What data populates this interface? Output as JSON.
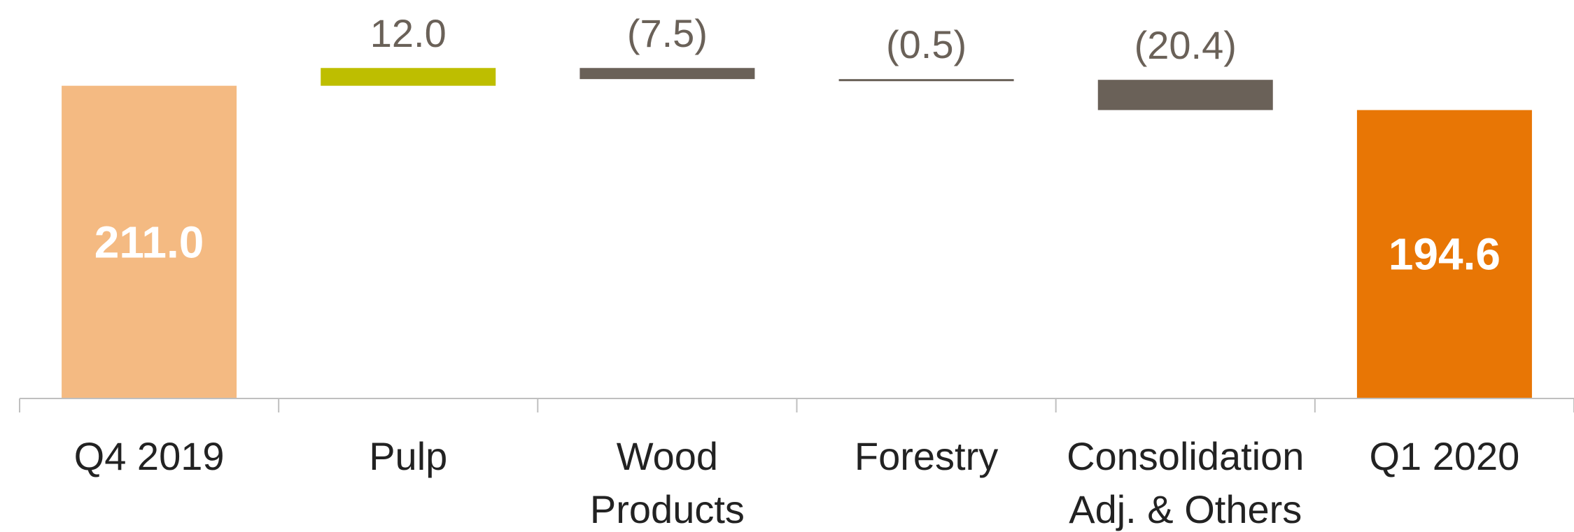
{
  "chart_data": {
    "type": "bar",
    "subtype": "waterfall",
    "title": "",
    "xlabel": "",
    "ylabel": "",
    "categories": [
      [
        "Q4 2019"
      ],
      [
        "Pulp"
      ],
      [
        "Wood",
        "Products"
      ],
      [
        "Forestry"
      ],
      [
        "Consolidation",
        "Adj. & Others"
      ],
      [
        "Q1 2020"
      ]
    ],
    "values": [
      211.0,
      12.0,
      -7.5,
      -0.5,
      -20.4,
      194.6
    ],
    "bar_kinds": [
      "total",
      "delta",
      "delta",
      "delta",
      "delta",
      "total"
    ],
    "labels": [
      "211.0",
      "12.0",
      "(7.5)",
      "(0.5)",
      "(20.4)",
      "194.6"
    ],
    "label_placement": [
      "inside",
      "above",
      "above",
      "above",
      "above",
      "inside"
    ],
    "grid": false,
    "legend": "none",
    "colors": {
      "start_total": "#F4BA82",
      "end_total": "#E87605",
      "increase": "#BEBE00",
      "decrease": "#6A6158",
      "axis": "#BFBFBF",
      "value_label_outside": "#6A6158",
      "value_label_inside": "#FFFFFF",
      "category_label": "#222222"
    }
  }
}
